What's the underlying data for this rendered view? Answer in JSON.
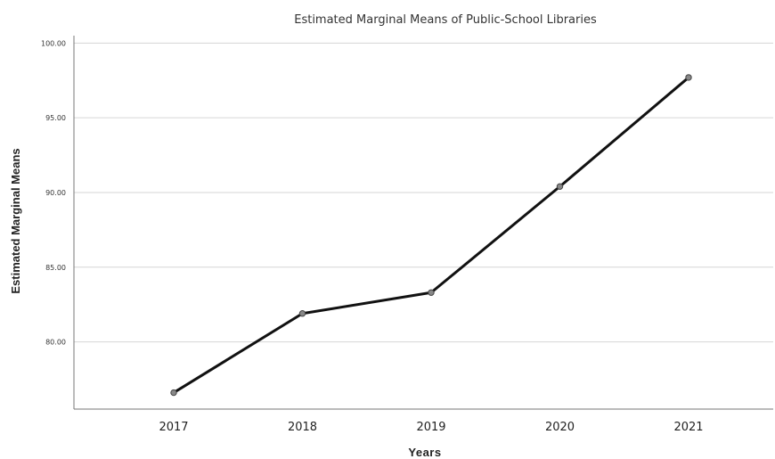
{
  "chart_data": {
    "type": "line",
    "title": "Estimated Marginal Means of Public-School Libraries",
    "xlabel": "Years",
    "ylabel": "Estimated Marginal Means",
    "categories": [
      "2017",
      "2018",
      "2019",
      "2020",
      "2021"
    ],
    "series": [
      {
        "values": [
          76.6,
          81.9,
          83.3,
          90.4,
          97.7
        ]
      }
    ],
    "ylim": [
      75.5,
      100.5
    ],
    "yticks": [
      80,
      85,
      90,
      95,
      100
    ],
    "ytick_labels": [
      "80.00",
      "85.00",
      "90.00",
      "95.00",
      "100.00"
    ],
    "grid": "horizontal",
    "legend": "none",
    "colors": {
      "line": "#111111",
      "marker": "#888888",
      "grid": "#d6d6d6"
    }
  }
}
